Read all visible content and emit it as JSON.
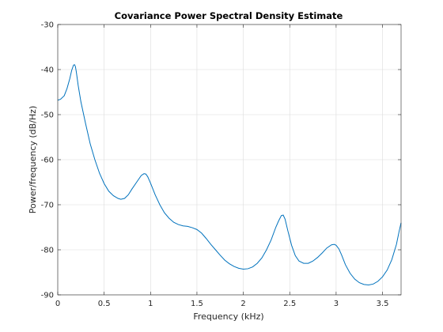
{
  "chart_data": {
    "type": "line",
    "title": "Covariance Power Spectral Density Estimate",
    "xlabel": "Frequency (kHz)",
    "ylabel": "Power/frequency (dB/Hz)",
    "xlim": [
      0,
      3.7
    ],
    "ylim": [
      -90,
      -30
    ],
    "xticks": [
      0,
      0.5,
      1,
      1.5,
      2,
      2.5,
      3,
      3.5
    ],
    "xtick_labels": [
      "0",
      "0.5",
      "1",
      "1.5",
      "2",
      "2.5",
      "3",
      "3.5"
    ],
    "yticks": [
      -90,
      -80,
      -70,
      -60,
      -50,
      -40,
      -30
    ],
    "ytick_labels": [
      "-90",
      "-80",
      "-70",
      "-60",
      "-50",
      "-40",
      "-30"
    ],
    "grid": true,
    "line_color": "#0072bd",
    "series": [
      {
        "x": [
          0,
          0.03,
          0.07,
          0.1,
          0.13,
          0.15,
          0.17,
          0.18,
          0.19,
          0.2,
          0.22,
          0.25,
          0.3,
          0.35,
          0.4,
          0.45,
          0.5,
          0.55,
          0.6,
          0.65,
          0.68,
          0.72,
          0.76,
          0.8,
          0.85,
          0.9,
          0.93,
          0.95,
          0.97,
          1.0,
          1.05,
          1.1,
          1.15,
          1.2,
          1.25,
          1.3,
          1.35,
          1.4,
          1.45,
          1.5,
          1.55,
          1.6,
          1.65,
          1.7,
          1.75,
          1.8,
          1.85,
          1.9,
          1.95,
          2.0,
          2.05,
          2.1,
          2.15,
          2.2,
          2.25,
          2.3,
          2.35,
          2.38,
          2.41,
          2.43,
          2.45,
          2.48,
          2.52,
          2.56,
          2.6,
          2.65,
          2.7,
          2.75,
          2.8,
          2.85,
          2.9,
          2.95,
          2.98,
          3.0,
          3.03,
          3.06,
          3.1,
          3.15,
          3.2,
          3.25,
          3.3,
          3.35,
          3.4,
          3.45,
          3.5,
          3.55,
          3.6,
          3.65,
          3.68,
          3.7
        ],
        "y": [
          -46.8,
          -46.6,
          -45.8,
          -44.2,
          -42.0,
          -40.2,
          -39.0,
          -38.9,
          -39.3,
          -40.5,
          -43.5,
          -47.2,
          -52.0,
          -56.5,
          -60.0,
          -63.0,
          -65.3,
          -67.0,
          -68.0,
          -68.6,
          -68.8,
          -68.6,
          -67.8,
          -66.5,
          -65.0,
          -63.5,
          -63.1,
          -63.2,
          -63.8,
          -65.2,
          -67.8,
          -70.0,
          -71.8,
          -73.0,
          -73.9,
          -74.4,
          -74.7,
          -74.8,
          -75.1,
          -75.5,
          -76.3,
          -77.5,
          -78.8,
          -80.0,
          -81.2,
          -82.3,
          -83.1,
          -83.7,
          -84.1,
          -84.3,
          -84.2,
          -83.8,
          -83.0,
          -81.8,
          -80.0,
          -77.8,
          -75.0,
          -73.6,
          -72.4,
          -72.3,
          -73.2,
          -75.8,
          -79.0,
          -81.3,
          -82.5,
          -83.0,
          -83.0,
          -82.5,
          -81.7,
          -80.7,
          -79.6,
          -78.9,
          -78.8,
          -79.0,
          -79.8,
          -81.2,
          -83.3,
          -85.2,
          -86.5,
          -87.3,
          -87.7,
          -87.8,
          -87.6,
          -87.0,
          -86.0,
          -84.5,
          -82.2,
          -78.8,
          -75.8,
          -74.0
        ]
      }
    ]
  }
}
